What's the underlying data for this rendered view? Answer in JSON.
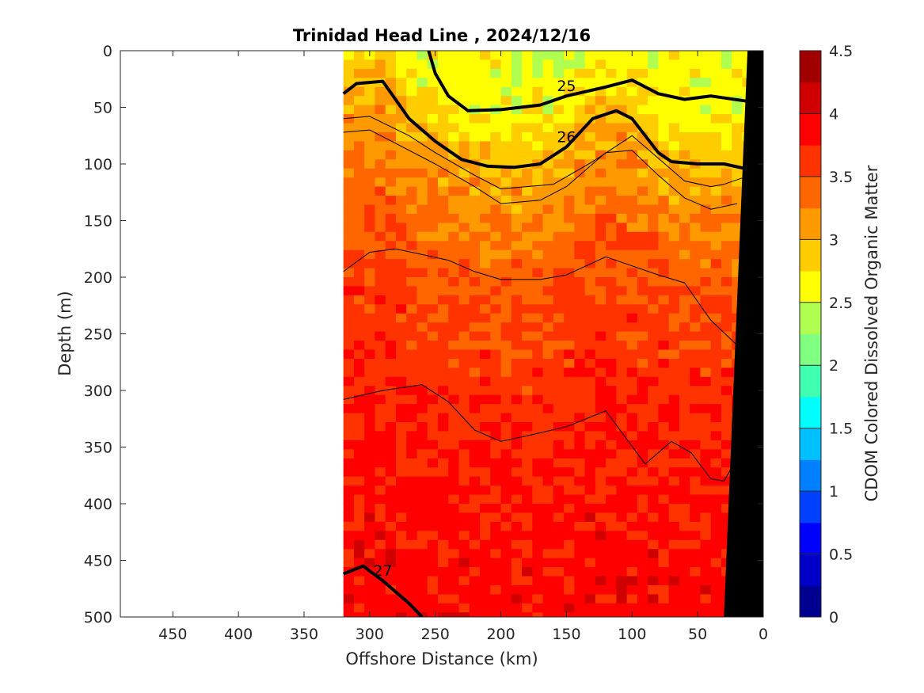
{
  "chart_data": {
    "type": "heatmap",
    "title": "Trinidad Head Line , 2024/12/16",
    "xlabel": "Offshore Distance (km)",
    "ylabel": "Depth (m)",
    "xlim": [
      490,
      0
    ],
    "ylim": [
      0,
      500
    ],
    "x_reversed": true,
    "y_reversed": true,
    "x_ticks": [
      450,
      400,
      350,
      300,
      250,
      200,
      150,
      100,
      50,
      0
    ],
    "y_ticks": [
      0,
      50,
      100,
      150,
      200,
      250,
      300,
      350,
      400,
      450,
      500
    ],
    "data_extent_km": [
      320,
      0
    ],
    "colorbar": {
      "label": "CDOM Colored Dissolved Organic Matter",
      "range": [
        0,
        4.5
      ],
      "ticks": [
        "0",
        "0.5",
        "1",
        "1.5",
        "2",
        "2.5",
        "3",
        "3.5",
        "4",
        "4.5"
      ],
      "colors": [
        "#000090",
        "#0000c8",
        "#0000ff",
        "#0040ff",
        "#0080ff",
        "#00c0ff",
        "#00ffff",
        "#40ffb0",
        "#80ff80",
        "#b0ff50",
        "#ffff00",
        "#ffcc00",
        "#ff9900",
        "#ff6600",
        "#ff3300",
        "#ff0000",
        "#d00000",
        "#a00000"
      ]
    },
    "cdom_profile": {
      "depths": [
        0,
        25,
        50,
        75,
        100,
        150,
        200,
        300,
        400,
        500
      ],
      "values": [
        2.6,
        2.6,
        2.7,
        3.0,
        3.1,
        3.3,
        3.5,
        3.7,
        3.8,
        3.9
      ]
    },
    "density_contours": [
      {
        "level": "25",
        "bold": true,
        "x": [
          255,
          250,
          240,
          225,
          200,
          170,
          150,
          120,
          100,
          80,
          60,
          40,
          10
        ],
        "y": [
          0,
          20,
          40,
          53,
          52,
          48,
          40,
          32,
          26,
          38,
          43,
          40,
          45
        ]
      },
      {
        "level": "26",
        "bold": true,
        "x": [
          320,
          310,
          290,
          270,
          250,
          230,
          210,
          190,
          170,
          150,
          130,
          112,
          100,
          90,
          80,
          70,
          50,
          30,
          10
        ],
        "y": [
          38,
          29,
          27,
          60,
          80,
          96,
          102,
          103,
          100,
          85,
          60,
          53,
          60,
          75,
          90,
          98,
          100,
          100,
          105
        ]
      },
      {
        "level": "27",
        "bold": true,
        "x": [
          320,
          305,
          290,
          270,
          260
        ],
        "y": [
          462,
          455,
          468,
          488,
          500
        ]
      },
      {
        "level": "",
        "bold": false,
        "x": [
          320,
          300,
          270,
          250,
          220,
          200,
          160,
          130,
          100,
          80,
          60,
          40,
          30,
          10
        ],
        "y": [
          60,
          58,
          75,
          90,
          110,
          122,
          118,
          98,
          75,
          95,
          115,
          120,
          118,
          110
        ]
      },
      {
        "level": "",
        "bold": false,
        "x": [
          320,
          300,
          270,
          250,
          220,
          200,
          170,
          150,
          120,
          100,
          80,
          60,
          40,
          20
        ],
        "y": [
          72,
          70,
          88,
          100,
          120,
          135,
          132,
          120,
          90,
          88,
          110,
          130,
          140,
          135
        ]
      },
      {
        "level": "",
        "bold": false,
        "x": [
          320,
          300,
          280,
          260,
          240,
          220,
          200,
          170,
          150,
          120,
          100,
          80,
          60,
          40,
          20
        ],
        "y": [
          195,
          178,
          175,
          180,
          185,
          195,
          202,
          202,
          198,
          182,
          190,
          198,
          205,
          238,
          260
        ]
      },
      {
        "level": "",
        "bold": false,
        "x": [
          320,
          290,
          260,
          240,
          220,
          200,
          180,
          150,
          120,
          90,
          70,
          55,
          40,
          30,
          20
        ],
        "y": [
          308,
          300,
          295,
          310,
          335,
          345,
          340,
          332,
          318,
          365,
          345,
          355,
          378,
          380,
          360
        ]
      }
    ]
  }
}
